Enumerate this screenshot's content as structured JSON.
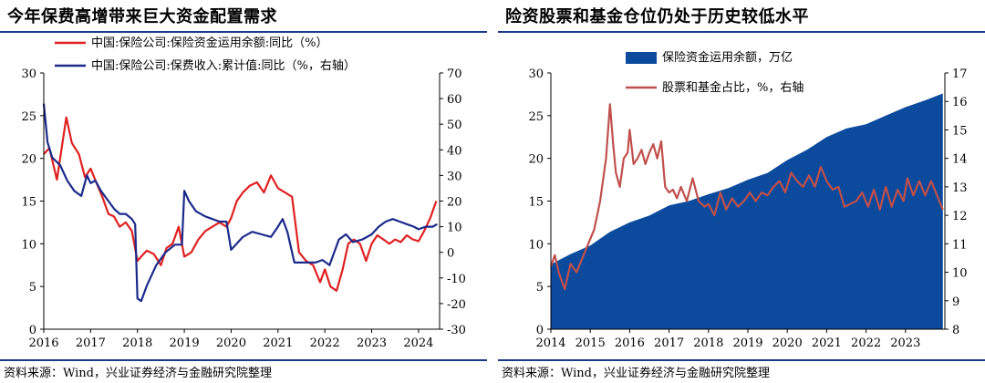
{
  "left": {
    "title": "今年保费高增带来巨大资金配置需求",
    "source": "资料来源：Wind，兴业证券经济与金融研究院整理"
  },
  "right": {
    "title": "险资股票和基金仓位仍处于历史较低水平",
    "source": "资料来源：Wind，兴业证券经济与金融研究院整理"
  },
  "chart_data": [
    {
      "type": "line",
      "title": "今年保费高增带来巨大资金配置需求",
      "xlabel": "",
      "x_ticks": [
        "2016",
        "2017",
        "2018",
        "2019",
        "2020",
        "2021",
        "2022",
        "2023",
        "2024"
      ],
      "xlim": [
        2016.0,
        2024.45
      ],
      "ylim": [
        0,
        30
      ],
      "y_ticks": [
        0,
        5,
        10,
        15,
        20,
        25,
        30
      ],
      "y2lim": [
        -30,
        70
      ],
      "y2_ticks": [
        -30,
        -20,
        -10,
        0,
        10,
        20,
        30,
        40,
        50,
        60,
        70
      ],
      "grid": false,
      "legend_position": "top",
      "series": [
        {
          "name": "中国:保险公司:保险资金运用余额:同比（%）",
          "axis": "left",
          "color": "#e02020",
          "x": [
            2016.0,
            2016.12,
            2016.28,
            2016.48,
            2016.6,
            2016.75,
            2016.88,
            2017.0,
            2017.12,
            2017.25,
            2017.38,
            2017.5,
            2017.62,
            2017.75,
            2017.88,
            2018.0,
            2018.08,
            2018.2,
            2018.35,
            2018.5,
            2018.62,
            2018.75,
            2018.88,
            2019.0,
            2019.15,
            2019.3,
            2019.45,
            2019.6,
            2019.75,
            2019.9,
            2020.0,
            2020.12,
            2020.25,
            2020.4,
            2020.55,
            2020.7,
            2020.85,
            2021.0,
            2021.15,
            2021.3,
            2021.45,
            2021.6,
            2021.75,
            2021.9,
            2022.0,
            2022.12,
            2022.25,
            2022.38,
            2022.5,
            2022.62,
            2022.75,
            2022.88,
            2023.0,
            2023.12,
            2023.25,
            2023.38,
            2023.5,
            2023.62,
            2023.75,
            2023.88,
            2024.0,
            2024.12,
            2024.25,
            2024.38
          ],
          "values": [
            20.5,
            21.2,
            17.5,
            24.8,
            21.8,
            20.5,
            17.8,
            18.8,
            17.2,
            15.5,
            13.5,
            13.2,
            12.0,
            12.5,
            11.5,
            8.0,
            8.5,
            9.2,
            8.8,
            7.5,
            9.5,
            10.0,
            12.0,
            8.5,
            9.0,
            10.5,
            11.5,
            12.0,
            12.5,
            12.0,
            13.0,
            15.0,
            16.0,
            16.8,
            17.2,
            16.0,
            18.0,
            16.5,
            16.0,
            15.5,
            9.0,
            8.0,
            7.5,
            5.5,
            7.0,
            5.0,
            4.5,
            7.0,
            10.0,
            10.5,
            10.0,
            8.0,
            10.0,
            11.0,
            10.5,
            10.0,
            10.5,
            10.2,
            11.0,
            10.5,
            10.3,
            11.5,
            13.0,
            15.0
          ]
        },
        {
          "name": "中国:保险公司:保费收入:累计值:同比（%，右轴）",
          "axis": "right",
          "color": "#1a2a8a",
          "x": [
            2016.0,
            2016.08,
            2016.18,
            2016.35,
            2016.5,
            2016.65,
            2016.8,
            2016.92,
            2017.0,
            2017.1,
            2017.22,
            2017.38,
            2017.5,
            2017.62,
            2017.75,
            2017.88,
            2017.95,
            2018.0,
            2018.08,
            2018.2,
            2018.4,
            2018.6,
            2018.8,
            2018.95,
            2019.0,
            2019.1,
            2019.25,
            2019.45,
            2019.6,
            2019.75,
            2019.9,
            2020.0,
            2020.1,
            2020.25,
            2020.45,
            2020.65,
            2020.85,
            2021.0,
            2021.1,
            2021.2,
            2021.35,
            2021.5,
            2021.65,
            2021.8,
            2021.95,
            2022.1,
            2022.3,
            2022.45,
            2022.6,
            2022.8,
            2023.0,
            2023.15,
            2023.3,
            2023.45,
            2023.6,
            2023.75,
            2023.9,
            2024.0,
            2024.15,
            2024.3,
            2024.4
          ],
          "values": [
            58,
            43,
            37,
            34,
            28,
            24,
            22,
            30,
            27,
            28,
            24,
            20,
            17,
            15,
            15,
            13,
            11,
            -18,
            -19,
            -13,
            -5,
            0,
            3,
            3,
            24,
            20,
            16,
            14,
            13,
            12,
            12,
            1,
            3,
            6,
            8,
            7,
            6,
            10,
            13,
            8,
            -4,
            -4,
            -4,
            -4,
            -3,
            -5,
            5,
            7,
            4,
            5,
            7,
            10,
            12,
            13,
            12,
            11,
            10,
            9,
            10,
            10,
            11
          ]
        }
      ]
    },
    {
      "type": "area",
      "title": "险资股票和基金仓位仍处于历史较低水平",
      "xlabel": "",
      "x_ticks": [
        "2014",
        "2015",
        "2016",
        "2017",
        "2018",
        "2019",
        "2020",
        "2021",
        "2022",
        "2023"
      ],
      "xlim": [
        2014.0,
        2024.0
      ],
      "ylim": [
        0,
        30
      ],
      "y_ticks": [
        0,
        5,
        10,
        15,
        20,
        25,
        30
      ],
      "y2lim": [
        8,
        17
      ],
      "y2_ticks": [
        8,
        9,
        10,
        11,
        12,
        13,
        14,
        15,
        16,
        17
      ],
      "grid": false,
      "legend_position": "top",
      "series": [
        {
          "name": "保险资金运用余额，万亿",
          "axis": "left",
          "type": "area",
          "color": "#0b4a9c",
          "x": [
            2014.0,
            2014.5,
            2015.0,
            2015.5,
            2016.0,
            2016.5,
            2017.0,
            2017.5,
            2018.0,
            2018.5,
            2019.0,
            2019.5,
            2020.0,
            2020.5,
            2021.0,
            2021.5,
            2022.0,
            2022.5,
            2023.0,
            2023.5,
            2023.95
          ],
          "values": [
            7.6,
            8.8,
            9.8,
            11.4,
            12.5,
            13.3,
            14.5,
            15.0,
            15.8,
            16.5,
            17.5,
            18.3,
            19.8,
            21.0,
            22.5,
            23.5,
            24.0,
            25.0,
            26.0,
            26.8,
            27.6
          ]
        },
        {
          "name": "股票和基金占比，%，右轴",
          "axis": "right",
          "type": "line",
          "color": "#c0504d",
          "x": [
            2014.0,
            2014.1,
            2014.2,
            2014.35,
            2014.5,
            2014.65,
            2014.8,
            2014.95,
            2015.1,
            2015.25,
            2015.4,
            2015.5,
            2015.58,
            2015.65,
            2015.75,
            2015.85,
            2015.95,
            2016.0,
            2016.1,
            2016.2,
            2016.3,
            2016.4,
            2016.5,
            2016.6,
            2016.7,
            2016.8,
            2016.9,
            2017.0,
            2017.1,
            2017.2,
            2017.3,
            2017.45,
            2017.6,
            2017.75,
            2017.9,
            2018.0,
            2018.15,
            2018.3,
            2018.45,
            2018.6,
            2018.75,
            2018.9,
            2019.05,
            2019.2,
            2019.35,
            2019.5,
            2019.65,
            2019.8,
            2019.95,
            2020.1,
            2020.25,
            2020.4,
            2020.55,
            2020.7,
            2020.85,
            2021.0,
            2021.15,
            2021.3,
            2021.45,
            2021.6,
            2021.75,
            2021.9,
            2022.05,
            2022.2,
            2022.35,
            2022.5,
            2022.65,
            2022.8,
            2022.95,
            2023.05,
            2023.2,
            2023.35,
            2023.5,
            2023.65,
            2023.8,
            2023.95
          ],
          "values": [
            10.2,
            10.6,
            10.0,
            9.4,
            10.3,
            10.0,
            10.5,
            11.0,
            11.5,
            12.5,
            14.0,
            15.9,
            14.5,
            13.5,
            13.0,
            14.0,
            14.2,
            15.0,
            13.8,
            14.0,
            14.3,
            13.8,
            14.2,
            14.5,
            14.0,
            14.6,
            13.0,
            12.8,
            12.9,
            12.6,
            13.0,
            12.5,
            13.3,
            12.5,
            12.3,
            12.4,
            12.0,
            12.8,
            12.2,
            12.6,
            12.3,
            12.5,
            12.8,
            12.5,
            12.8,
            12.7,
            13.0,
            13.2,
            12.8,
            13.5,
            13.2,
            13.0,
            13.4,
            13.0,
            13.7,
            13.2,
            12.9,
            13.0,
            12.3,
            12.4,
            12.5,
            12.8,
            12.3,
            12.9,
            12.2,
            13.0,
            12.3,
            12.9,
            12.5,
            13.3,
            12.7,
            13.2,
            12.7,
            13.2,
            12.7,
            12.2
          ]
        }
      ]
    }
  ]
}
